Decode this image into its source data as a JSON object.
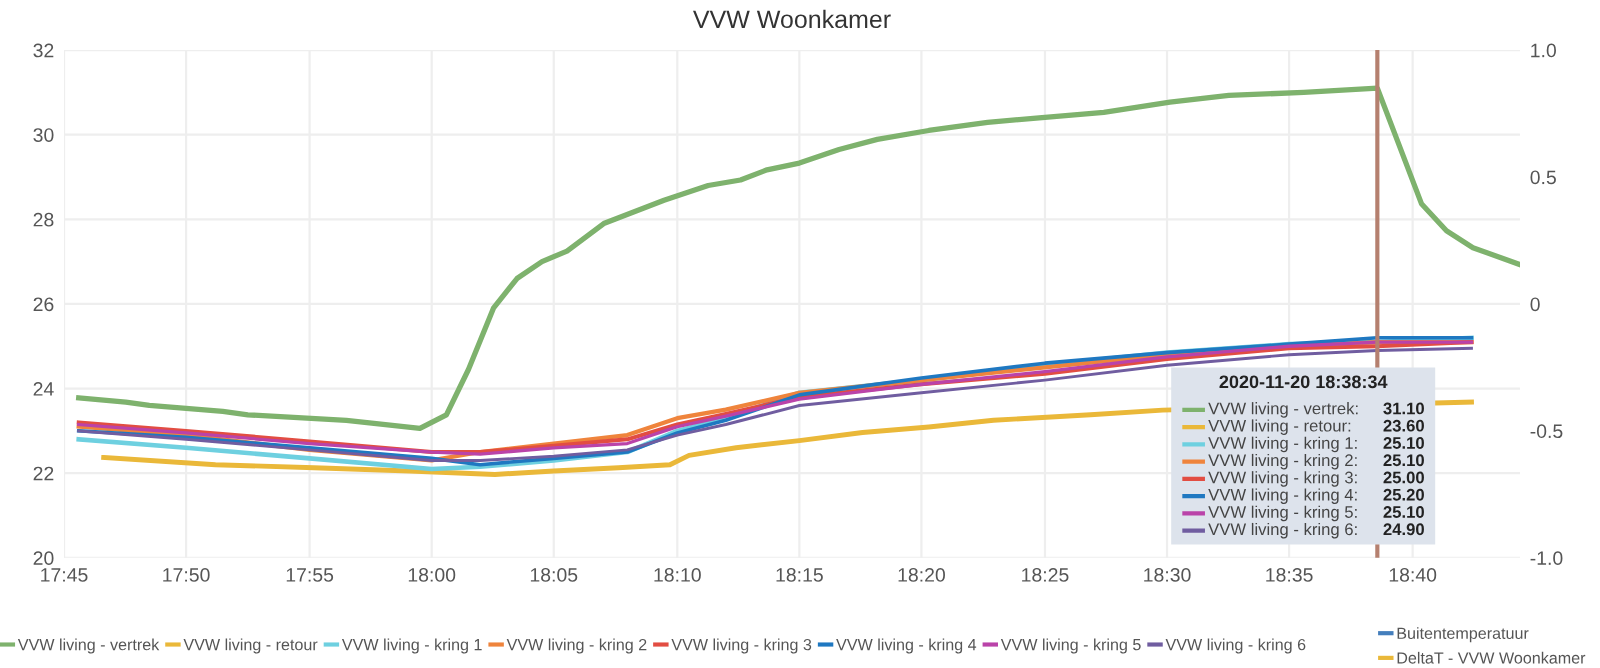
{
  "chart_data": {
    "type": "line",
    "title": "VVW Woonkamer",
    "x": [
      17.76,
      17.833,
      17.917,
      18.0,
      18.033,
      18.083,
      18.133,
      18.167,
      18.2,
      18.25,
      18.333,
      18.417,
      18.5,
      18.583,
      18.643,
      18.707
    ],
    "series": [
      {
        "name": "VVW living - vertrek",
        "color": "#7eb26d",
        "x": [
          17.76,
          17.792,
          17.808,
          17.858,
          17.875,
          17.942,
          17.992,
          18.01,
          18.025,
          18.042,
          18.058,
          18.075,
          18.092,
          18.117,
          18.158,
          18.188,
          18.21,
          18.228,
          18.25,
          18.277,
          18.303,
          18.338,
          18.378,
          18.413,
          18.457,
          18.502,
          18.542,
          18.593,
          18.643,
          18.673,
          18.69,
          18.708,
          18.74
        ],
        "values": [
          23.78,
          23.68,
          23.6,
          23.46,
          23.38,
          23.25,
          23.06,
          23.38,
          24.45,
          25.9,
          26.6,
          27.0,
          27.25,
          27.9,
          28.45,
          28.8,
          28.93,
          29.17,
          29.33,
          29.65,
          29.89,
          30.1,
          30.29,
          30.4,
          30.53,
          30.77,
          30.93,
          31.0,
          31.1,
          28.37,
          27.73,
          27.33,
          26.93
        ]
      },
      {
        "name": "VVW living - retour",
        "color": "#eab839",
        "x": [
          17.777,
          17.853,
          17.92,
          17.985,
          18.043,
          18.083,
          18.127,
          18.162,
          18.175,
          18.207,
          18.25,
          18.293,
          18.338,
          18.382,
          18.448,
          18.497,
          18.707
        ],
        "values": [
          22.37,
          22.2,
          22.13,
          22.05,
          21.97,
          22.05,
          22.13,
          22.2,
          22.42,
          22.6,
          22.77,
          22.96,
          23.09,
          23.25,
          23.38,
          23.49,
          23.68
        ]
      },
      {
        "name": "VVW living - kring 1",
        "color": "#6ed0e0",
        "values": [
          22.8,
          22.6,
          22.35,
          22.1,
          22.15,
          22.3,
          22.5,
          23.0,
          23.3,
          23.9,
          24.2,
          24.55,
          24.85,
          25.05,
          25.1,
          25.2
        ]
      },
      {
        "name": "VVW living - kring 2",
        "color": "#ef843c",
        "values": [
          23.1,
          22.9,
          22.55,
          22.3,
          22.5,
          22.7,
          22.9,
          23.3,
          23.5,
          23.9,
          24.2,
          24.5,
          24.8,
          25.0,
          25.1,
          25.1
        ]
      },
      {
        "name": "VVW living - kring 3",
        "color": "#e24d42",
        "values": [
          23.2,
          23.0,
          22.75,
          22.5,
          22.5,
          22.65,
          22.8,
          23.15,
          23.4,
          23.8,
          24.1,
          24.35,
          24.7,
          24.95,
          25.0,
          25.1
        ]
      },
      {
        "name": "VVW living - kring 4",
        "color": "#1f78c1",
        "values": [
          23.0,
          22.85,
          22.6,
          22.35,
          22.2,
          22.35,
          22.5,
          22.95,
          23.25,
          23.85,
          24.25,
          24.6,
          24.85,
          25.05,
          25.2,
          25.2
        ]
      },
      {
        "name": "VVW living - kring 5",
        "color": "#ba43a9",
        "values": [
          23.15,
          22.95,
          22.7,
          22.5,
          22.45,
          22.6,
          22.7,
          23.1,
          23.35,
          23.75,
          24.1,
          24.4,
          24.75,
          25.0,
          25.1,
          25.1
        ]
      },
      {
        "name": "VVW living - kring 6",
        "color": "#705da0",
        "values": [
          23.0,
          22.8,
          22.55,
          22.3,
          22.3,
          22.4,
          22.55,
          22.9,
          23.15,
          23.6,
          23.9,
          24.2,
          24.55,
          24.8,
          24.9,
          24.95
        ]
      },
      {
        "name": "Buitentemperatuur",
        "color": "#447ebc",
        "axis": "y2",
        "values": [
          null,
          null,
          null,
          null,
          null,
          null,
          null,
          null,
          null,
          null,
          null,
          null,
          null,
          null,
          null,
          null
        ]
      },
      {
        "name": "DeltaT - VVW Woonkamer",
        "color": "#eab839",
        "axis": "y2",
        "values": [
          null,
          null,
          null,
          null,
          null,
          null,
          null,
          null,
          null,
          null,
          null,
          null,
          null,
          null,
          null,
          null
        ]
      }
    ],
    "xlim": [
      17.75,
      18.74
    ],
    "xticks": [
      {
        "value": 17.75,
        "label": "17:45"
      },
      {
        "value": 17.833,
        "label": "17:50"
      },
      {
        "value": 17.917,
        "label": "17:55"
      },
      {
        "value": 18.0,
        "label": "18:00"
      },
      {
        "value": 18.083,
        "label": "18:05"
      },
      {
        "value": 18.167,
        "label": "18:10"
      },
      {
        "value": 18.25,
        "label": "18:15"
      },
      {
        "value": 18.333,
        "label": "18:20"
      },
      {
        "value": 18.417,
        "label": "18:25"
      },
      {
        "value": 18.5,
        "label": "18:30"
      },
      {
        "value": 18.583,
        "label": "18:35"
      },
      {
        "value": 18.667,
        "label": "18:40"
      }
    ],
    "ylim": [
      20,
      32
    ],
    "yticks": [
      20,
      22,
      24,
      26,
      28,
      30,
      32
    ],
    "y2lim": [
      -1,
      1
    ],
    "y2ticks": [
      {
        "value": -1,
        "label": "-1.0"
      },
      {
        "value": -0.5,
        "label": "-0.5"
      },
      0,
      {
        "value": 0.5,
        "label": "0.5"
      },
      {
        "value": 1,
        "label": "1.0"
      }
    ],
    "ref_lines": [
      {
        "axis": "x",
        "value": 18.643,
        "color": "#b5806f"
      }
    ],
    "annotations": [
      "2020-11-20 18:38:34",
      "VVW living - vertrek:",
      "31.10",
      "VVW living - retour:",
      "23.60",
      "VVW living - kring 1:",
      "25.10",
      "VVW living - kring 2:",
      "25.10",
      "VVW living - kring 3:",
      "25.00",
      "VVW living - kring 4:",
      "25.20",
      "VVW living - kring 5:",
      "25.10",
      "VVW living - kring 6:",
      "24.90"
    ],
    "grid": true,
    "legend": "bottom",
    "marker": "none",
    "line_style": "solid"
  }
}
